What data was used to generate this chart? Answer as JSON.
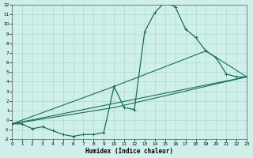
{
  "xlabel": "Humidex (Indice chaleur)",
  "xlim": [
    0,
    23
  ],
  "ylim": [
    -2,
    12
  ],
  "xticks": [
    0,
    1,
    2,
    3,
    4,
    5,
    6,
    7,
    8,
    9,
    10,
    11,
    12,
    13,
    14,
    15,
    16,
    17,
    18,
    19,
    20,
    21,
    22,
    23
  ],
  "yticks": [
    -2,
    -1,
    0,
    1,
    2,
    3,
    4,
    5,
    6,
    7,
    8,
    9,
    10,
    11,
    12
  ],
  "background_color": "#cff0ea",
  "grid_color": "#afd8d0",
  "line_color": "#1a6b5a",
  "line1_x": [
    0,
    1,
    2,
    3,
    4,
    5,
    6,
    7,
    8,
    9,
    10,
    11,
    12,
    13,
    14,
    15,
    16,
    17,
    18,
    19,
    20,
    21,
    22,
    23
  ],
  "line1_y": [
    -0.4,
    -0.4,
    -0.9,
    -0.7,
    -1.1,
    -1.5,
    -1.7,
    -1.5,
    -1.5,
    -1.3,
    3.5,
    1.3,
    1.1,
    9.2,
    11.2,
    12.3,
    11.8,
    9.5,
    8.6,
    7.2,
    6.5,
    4.8,
    4.5,
    4.5
  ],
  "line2_x": [
    0,
    10,
    19,
    23
  ],
  "line2_y": [
    -0.4,
    3.5,
    7.2,
    4.5
  ],
  "line3_x": [
    0,
    10,
    23
  ],
  "line3_y": [
    -0.4,
    1.3,
    4.5
  ],
  "line4_x": [
    0,
    23
  ],
  "line4_y": [
    -0.4,
    4.5
  ],
  "marker": "+"
}
